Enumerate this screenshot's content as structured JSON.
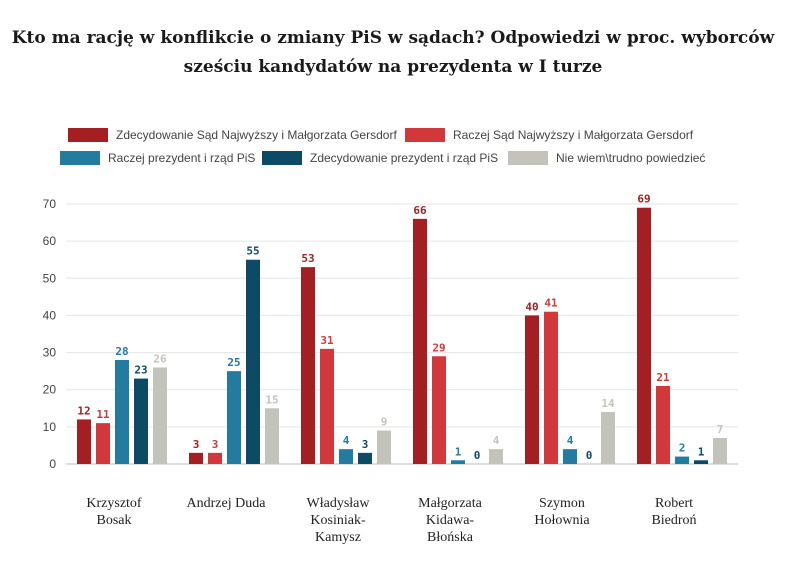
{
  "title_line1": "Kto ma rację w konflikcie o zmiany PiS w sądach? Odpowiedzi w proc. wyborców",
  "title_line2": "sześciu kandydatów na prezydenta w I turze",
  "chart_data": {
    "type": "bar",
    "title": "Kto ma rację w konflikcie o zmiany PiS w sądach? Odpowiedzi w proc. wyborców sześciu kandydatów na prezydenta w I turze",
    "xlabel": "",
    "ylabel": "",
    "ylim": [
      0,
      70
    ],
    "yticks": [
      0,
      10,
      20,
      30,
      40,
      50,
      60,
      70
    ],
    "grid": true,
    "legend_placement": "top",
    "categories": [
      [
        "Krzysztof",
        "Bosak"
      ],
      [
        "Andrzej Duda"
      ],
      [
        "Władysław",
        "Kosiniak-",
        "Kamysz"
      ],
      [
        "Małgorzata",
        "Kidawa-",
        "Błońska"
      ],
      [
        "Szymon",
        "Hołownia"
      ],
      [
        "Robert",
        "Biedroń"
      ]
    ],
    "series": [
      {
        "name": "Zdecydowanie Sąd Najwyższy i Małgorzata Gersdorf",
        "color": "#a51e22",
        "values": [
          12,
          3,
          53,
          66,
          40,
          69
        ]
      },
      {
        "name": "Raczej Sąd Najwyższy i Małgorzata Gersdorf",
        "color": "#d2383a",
        "values": [
          11,
          3,
          31,
          29,
          41,
          21
        ]
      },
      {
        "name": "Raczej prezydent i rząd PiS",
        "color": "#237ba0",
        "values": [
          28,
          25,
          4,
          1,
          4,
          2
        ]
      },
      {
        "name": "Zdecydowanie prezydent i rząd PiS",
        "color": "#0d4a66",
        "values": [
          23,
          55,
          3,
          0,
          0,
          1
        ]
      },
      {
        "name": "Nie wiem\\trudno powiedzieć",
        "color": "#c4c3bb",
        "values": [
          26,
          15,
          9,
          4,
          14,
          7
        ]
      }
    ]
  }
}
